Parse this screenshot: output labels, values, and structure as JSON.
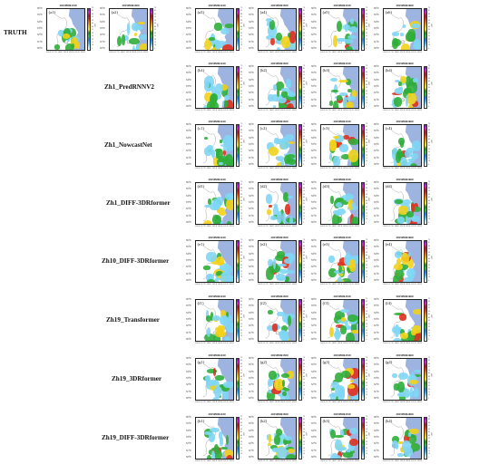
{
  "times": [
    "202509061330",
    "202509061400",
    "202509061430",
    "202509061500",
    "202509061530",
    "202509061600"
  ],
  "lat_ticks": [
    "36°N",
    "35°N",
    "34°N",
    "33°N",
    "32°N",
    "31°N",
    "30°N"
  ],
  "lon_ticks": [
    "116°E",
    "117°E",
    "118°E",
    "119°E",
    "120°E",
    "121°E",
    "122°E"
  ],
  "colorbar_ticks": [
    "70",
    "65",
    "60",
    "55",
    "50",
    "45",
    "40",
    "35",
    "30",
    "25",
    "20",
    "15",
    "10",
    "5"
  ],
  "colorbar_unit": "dBZ",
  "colors": {
    "sea": "#9db3e0",
    "land": "#ffffff",
    "echo_light": "#7fd6f5",
    "echo_green": "#2fae3a",
    "echo_yellow": "#f2d21a",
    "echo_red": "#e0301e",
    "colorbar": [
      "#ffffff",
      "#a6e6ff",
      "#3fb5f0",
      "#1f7de0",
      "#2fc23a",
      "#1f8f1f",
      "#f5e71a",
      "#f2b90f",
      "#f07a12",
      "#e0301e",
      "#b0141e",
      "#e025d8",
      "#8a12b8"
    ]
  },
  "rows": [
    {
      "label": "TRUTH",
      "panels": [
        {
          "tag": "(a1)",
          "time": "202509061330"
        },
        {
          "tag": "(a2)",
          "time": "202509061400"
        },
        {
          "tag": "(a3)",
          "time": "202509061430"
        },
        {
          "tag": "(a4)",
          "time": "202509061500"
        },
        {
          "tag": "(a5)",
          "time": "202509061530"
        },
        {
          "tag": "(a6)",
          "time": "202509061600"
        }
      ]
    },
    {
      "label": "Zh1_PredRNNV2",
      "panels": [
        {
          "tag": "(b1)",
          "time": "202509061430"
        },
        {
          "tag": "(b2)",
          "time": "202509061500"
        },
        {
          "tag": "(b3)",
          "time": "202509061530"
        },
        {
          "tag": "(b4)",
          "time": "202509061600"
        }
      ]
    },
    {
      "label": "Zh1_NowcastNet",
      "panels": [
        {
          "tag": "(c1)",
          "time": "202509061430"
        },
        {
          "tag": "(c2)",
          "time": "202509061500"
        },
        {
          "tag": "(c3)",
          "time": "202509061530"
        },
        {
          "tag": "(c4)",
          "time": "202509061600"
        }
      ]
    },
    {
      "label": "Zh1_DIFF-3DRformer",
      "panels": [
        {
          "tag": "(d1)",
          "time": "202509061430"
        },
        {
          "tag": "(d2)",
          "time": "202509061500"
        },
        {
          "tag": "(d3)",
          "time": "202509061530"
        },
        {
          "tag": "(d4)",
          "time": "202509061600"
        }
      ]
    },
    {
      "label": "Zh10_DIFF-3DRformer",
      "panels": [
        {
          "tag": "(e1)",
          "time": "202509061430"
        },
        {
          "tag": "(e2)",
          "time": "202509061500"
        },
        {
          "tag": "(e3)",
          "time": "202509061530"
        },
        {
          "tag": "(e4)",
          "time": "202509061600"
        }
      ]
    },
    {
      "label": "Zh19_Transformer",
      "panels": [
        {
          "tag": "(f1)",
          "time": "202509061430"
        },
        {
          "tag": "(f2)",
          "time": "202509061500"
        },
        {
          "tag": "(f3)",
          "time": "202509061530"
        },
        {
          "tag": "(f4)",
          "time": "202509061600"
        }
      ]
    },
    {
      "label": "Zh19_3DRformer",
      "panels": [
        {
          "tag": "(g1)",
          "time": "202509061430"
        },
        {
          "tag": "(g2)",
          "time": "202509061500"
        },
        {
          "tag": "(g3)",
          "time": "202509061530"
        },
        {
          "tag": "(g4)",
          "time": "202509061600"
        }
      ]
    },
    {
      "label": "Zh19_DIFF-3DRformer",
      "panels": [
        {
          "tag": "(h1)",
          "time": "202509061430"
        },
        {
          "tag": "(h2)",
          "time": "202509061500"
        },
        {
          "tag": "(h3)",
          "time": "202509061530"
        },
        {
          "tag": "(h4)",
          "time": "202509061600"
        }
      ]
    }
  ]
}
